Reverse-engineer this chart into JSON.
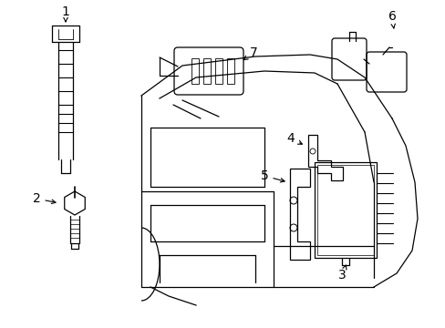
{
  "background_color": "#ffffff",
  "line_color": "#000000",
  "fig_width": 4.89,
  "fig_height": 3.6,
  "dpi": 100,
  "font_size": 10,
  "lw": 0.9
}
